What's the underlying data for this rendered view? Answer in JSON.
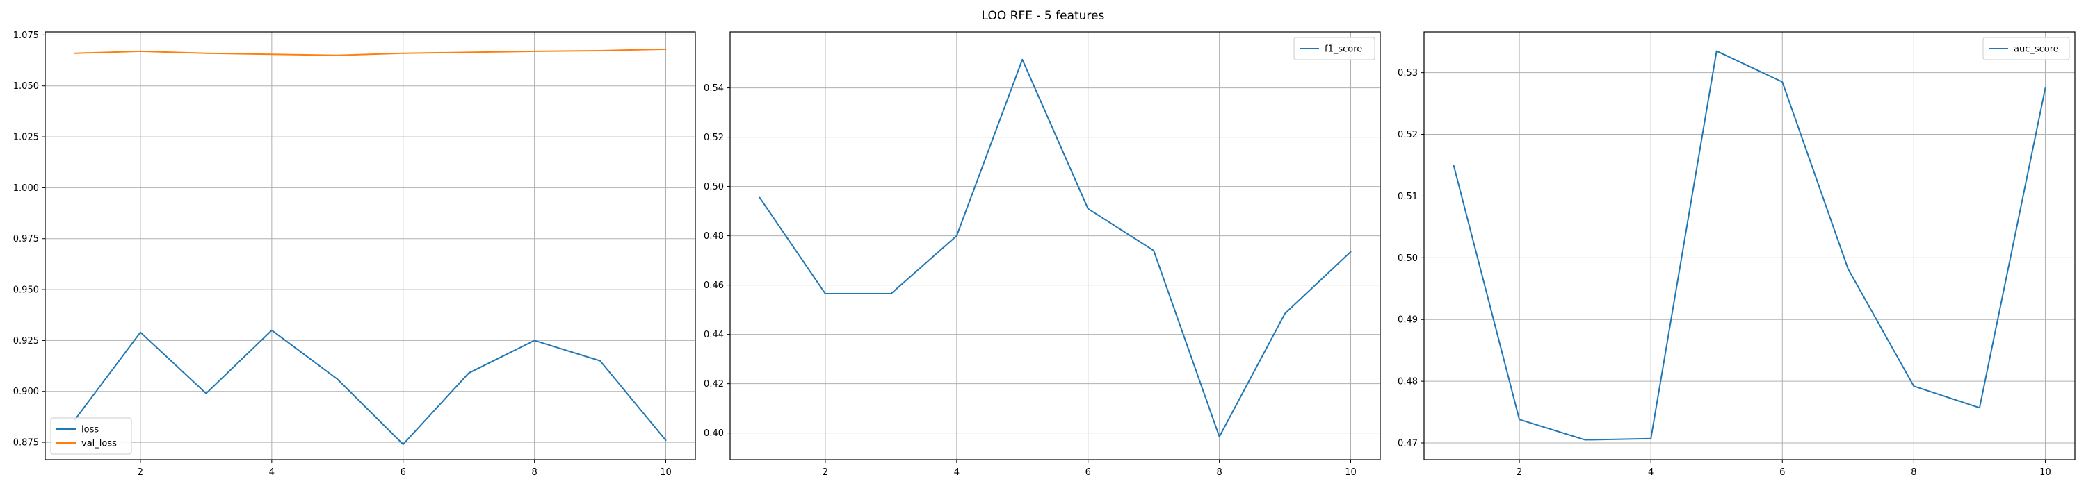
{
  "figure": {
    "suptitle": "LOO RFE - 5 features"
  },
  "chart_data": [
    {
      "type": "line",
      "title": "",
      "xlabel": "",
      "ylabel": "",
      "x": [
        1,
        2,
        3,
        4,
        5,
        6,
        7,
        8,
        9,
        10
      ],
      "xlim": [
        0.55,
        10.45
      ],
      "ylim": [
        0.8665,
        1.0765
      ],
      "xticks": [
        2,
        4,
        6,
        8,
        10
      ],
      "yticks": [
        0.875,
        0.9,
        0.925,
        0.95,
        0.975,
        1.0,
        1.025,
        1.05,
        1.075
      ],
      "ytick_labels": [
        "0.875",
        "0.900",
        "0.925",
        "0.950",
        "0.975",
        "1.000",
        "1.025",
        "1.050",
        "1.075"
      ],
      "grid": true,
      "legend_position": "lower-left",
      "series": [
        {
          "name": "loss",
          "color": "#1f77b4",
          "values": [
            0.886,
            0.929,
            0.899,
            0.93,
            0.906,
            0.874,
            0.909,
            0.925,
            0.915,
            0.876
          ]
        },
        {
          "name": "val_loss",
          "color": "#ff7f0e",
          "values": [
            1.066,
            1.067,
            1.066,
            1.0655,
            1.065,
            1.066,
            1.0665,
            1.067,
            1.0673,
            1.068
          ]
        }
      ]
    },
    {
      "type": "line",
      "title": "",
      "xlabel": "",
      "ylabel": "",
      "x": [
        1,
        2,
        3,
        4,
        5,
        6,
        7,
        8,
        9,
        10
      ],
      "xlim": [
        0.55,
        10.45
      ],
      "ylim": [
        0.3892,
        0.5627
      ],
      "xticks": [
        2,
        4,
        6,
        8,
        10
      ],
      "yticks": [
        0.4,
        0.42,
        0.44,
        0.46,
        0.48,
        0.5,
        0.52,
        0.54
      ],
      "ytick_labels": [
        "0.40",
        "0.42",
        "0.44",
        "0.46",
        "0.48",
        "0.50",
        "0.52",
        "0.54"
      ],
      "grid": true,
      "legend_position": "top-right",
      "series": [
        {
          "name": "f1_score",
          "color": "#1f77b4",
          "values": [
            0.4955,
            0.4565,
            0.4565,
            0.48,
            0.5515,
            0.491,
            0.474,
            0.3985,
            0.4485,
            0.4735
          ]
        }
      ]
    },
    {
      "type": "line",
      "title": "",
      "xlabel": "",
      "ylabel": "",
      "x": [
        1,
        2,
        3,
        4,
        5,
        6,
        7,
        8,
        9,
        10
      ],
      "xlim": [
        0.55,
        10.45
      ],
      "ylim": [
        0.4673,
        0.5366
      ],
      "xticks": [
        2,
        4,
        6,
        8,
        10
      ],
      "yticks": [
        0.47,
        0.48,
        0.49,
        0.5,
        0.51,
        0.52,
        0.53
      ],
      "ytick_labels": [
        "0.47",
        "0.48",
        "0.49",
        "0.50",
        "0.51",
        "0.52",
        "0.53"
      ],
      "grid": true,
      "legend_position": "top-right",
      "series": [
        {
          "name": "auc_score",
          "color": "#1f77b4",
          "values": [
            0.515,
            0.4738,
            0.4705,
            0.4707,
            0.5335,
            0.5285,
            0.4982,
            0.4792,
            0.4757,
            0.5275
          ]
        }
      ]
    }
  ]
}
